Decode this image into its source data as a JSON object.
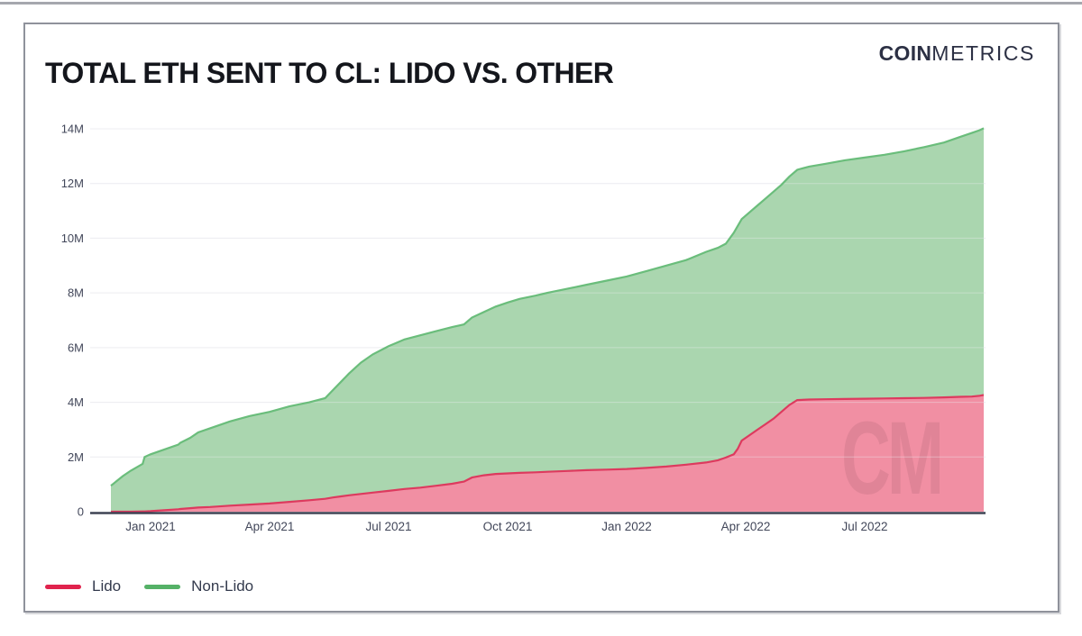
{
  "header": {
    "title": "TOTAL ETH SENT TO CL: LIDO VS. OTHER"
  },
  "logo": {
    "bold": "COIN",
    "light": "METRICS"
  },
  "watermark": "CM",
  "legend": [
    {
      "label": "Lido",
      "color": "#e0234d"
    },
    {
      "label": "Non-Lido",
      "color": "#55b167"
    }
  ],
  "colors": {
    "lido_fill": "#f18fa3",
    "lido_line": "#dd3a5e",
    "nonlido_fill": "#aad6af",
    "nonlido_line": "#6abd7b",
    "gridline": "#ededf1",
    "axis_line": "#3e4353",
    "tick_text": "#42475a"
  },
  "chart_data": {
    "type": "area",
    "stacked": true,
    "title": "TOTAL ETH SENT TO CL: LIDO VS. OTHER",
    "xlabel": "",
    "ylabel": "",
    "y_unit": "ETH (millions)",
    "ylim": [
      0,
      14
    ],
    "grid": "horizontal",
    "legend_position": "bottom-left",
    "x_unit_note": "months since Dec 2020; axis spans Dec 2020 to Oct 2022",
    "x_domain_months": [
      0,
      22
    ],
    "x_ticks": [
      {
        "t": 1,
        "label": "Jan 2021"
      },
      {
        "t": 4,
        "label": "Apr 2021"
      },
      {
        "t": 7,
        "label": "Jul 2021"
      },
      {
        "t": 10,
        "label": "Oct 2021"
      },
      {
        "t": 13,
        "label": "Jan 2022"
      },
      {
        "t": 16,
        "label": "Apr 2022"
      },
      {
        "t": 19,
        "label": "Jul 2022"
      }
    ],
    "y_ticks": [
      {
        "v": 0,
        "label": "0"
      },
      {
        "v": 2,
        "label": "2M"
      },
      {
        "v": 4,
        "label": "4M"
      },
      {
        "v": 6,
        "label": "6M"
      },
      {
        "v": 8,
        "label": "8M"
      },
      {
        "v": 10,
        "label": "10M"
      },
      {
        "v": 12,
        "label": "12M"
      },
      {
        "v": 14,
        "label": "14M"
      }
    ],
    "x": [
      0,
      0.3,
      0.5,
      0.8,
      0.85,
      1.0,
      1.3,
      1.7,
      1.75,
      2.0,
      2.2,
      2.5,
      3.0,
      3.5,
      4.0,
      4.5,
      5.0,
      5.4,
      5.6,
      5.8,
      6.0,
      6.3,
      6.6,
      7.0,
      7.4,
      7.8,
      8.2,
      8.6,
      8.9,
      9.1,
      9.4,
      9.7,
      10.0,
      10.3,
      10.7,
      11.0,
      11.5,
      12.0,
      12.5,
      13.0,
      13.5,
      14.0,
      14.5,
      15.0,
      15.3,
      15.5,
      15.7,
      15.8,
      15.9,
      16.1,
      16.3,
      16.5,
      16.7,
      16.9,
      17.1,
      17.3,
      17.6,
      18.0,
      18.5,
      19.0,
      19.5,
      20.0,
      20.5,
      21.0,
      21.4,
      21.7,
      21.9,
      22.0
    ],
    "series": [
      {
        "name": "Lido",
        "values": [
          0,
          0,
          0,
          0.01,
          0.01,
          0.02,
          0.05,
          0.09,
          0.1,
          0.13,
          0.15,
          0.17,
          0.22,
          0.26,
          0.3,
          0.36,
          0.42,
          0.47,
          0.52,
          0.56,
          0.6,
          0.65,
          0.7,
          0.76,
          0.83,
          0.88,
          0.95,
          1.02,
          1.1,
          1.25,
          1.33,
          1.38,
          1.4,
          1.42,
          1.44,
          1.46,
          1.49,
          1.52,
          1.54,
          1.56,
          1.6,
          1.65,
          1.72,
          1.8,
          1.88,
          1.98,
          2.1,
          2.3,
          2.6,
          2.8,
          3.0,
          3.2,
          3.4,
          3.65,
          3.9,
          4.08,
          4.1,
          4.11,
          4.12,
          4.13,
          4.14,
          4.15,
          4.16,
          4.18,
          4.2,
          4.21,
          4.24,
          4.27
        ]
      },
      {
        "name": "Non-Lido",
        "values": [
          0.95,
          1.3,
          1.5,
          1.74,
          1.99,
          2.08,
          2.2,
          2.36,
          2.42,
          2.57,
          2.75,
          2.88,
          3.08,
          3.24,
          3.35,
          3.49,
          3.58,
          3.68,
          3.93,
          4.19,
          4.45,
          4.8,
          5.05,
          5.29,
          5.47,
          5.57,
          5.65,
          5.73,
          5.75,
          5.85,
          5.97,
          6.12,
          6.25,
          6.36,
          6.46,
          6.54,
          6.66,
          6.78,
          6.91,
          7.04,
          7.2,
          7.35,
          7.48,
          7.7,
          7.77,
          7.82,
          8.1,
          8.15,
          8.1,
          8.15,
          8.2,
          8.25,
          8.3,
          8.3,
          8.35,
          8.42,
          8.52,
          8.61,
          8.73,
          8.82,
          8.91,
          9.03,
          9.17,
          9.32,
          9.5,
          9.64,
          9.71,
          9.75
        ]
      }
    ],
    "totals": [
      0.95,
      1.3,
      1.5,
      1.75,
      2.0,
      2.1,
      2.25,
      2.45,
      2.52,
      2.7,
      2.9,
      3.05,
      3.3,
      3.5,
      3.65,
      3.85,
      4.0,
      4.15,
      4.45,
      4.75,
      5.05,
      5.45,
      5.75,
      6.05,
      6.3,
      6.45,
      6.6,
      6.75,
      6.85,
      7.1,
      7.3,
      7.5,
      7.65,
      7.78,
      7.9,
      8.0,
      8.15,
      8.3,
      8.45,
      8.6,
      8.8,
      9.0,
      9.2,
      9.5,
      9.65,
      9.8,
      10.2,
      10.45,
      10.7,
      10.95,
      11.2,
      11.45,
      11.7,
      11.95,
      12.25,
      12.5,
      12.62,
      12.72,
      12.85,
      12.95,
      13.05,
      13.18,
      13.33,
      13.5,
      13.7,
      13.85,
      13.95,
      14.02
    ]
  }
}
